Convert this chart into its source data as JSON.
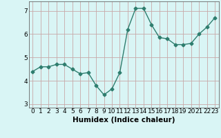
{
  "x": [
    0,
    1,
    2,
    3,
    4,
    5,
    6,
    7,
    8,
    9,
    10,
    11,
    12,
    13,
    14,
    15,
    16,
    17,
    18,
    19,
    20,
    21,
    22,
    23
  ],
  "y": [
    4.4,
    4.6,
    4.6,
    4.7,
    4.7,
    4.5,
    4.3,
    4.35,
    3.8,
    3.4,
    3.65,
    4.35,
    6.2,
    7.1,
    7.1,
    6.4,
    5.85,
    5.8,
    5.55,
    5.55,
    5.6,
    6.0,
    6.3,
    6.7
  ],
  "xlabel": "Humidex (Indice chaleur)",
  "xlim": [
    -0.5,
    23.5
  ],
  "ylim": [
    2.85,
    7.4
  ],
  "yticks": [
    3,
    4,
    5,
    6,
    7
  ],
  "xticks": [
    0,
    1,
    2,
    3,
    4,
    5,
    6,
    7,
    8,
    9,
    10,
    11,
    12,
    13,
    14,
    15,
    16,
    17,
    18,
    19,
    20,
    21,
    22,
    23
  ],
  "line_color": "#2e7d6e",
  "marker": "D",
  "marker_size": 2.5,
  "bg_color": "#d9f5f5",
  "grid_color": "#c8a8a8",
  "xlabel_fontsize": 7.5,
  "tick_fontsize": 6.5,
  "line_width": 1.0
}
